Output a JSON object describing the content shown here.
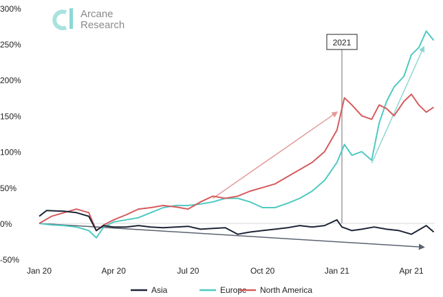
{
  "brand": {
    "line1": "Arcane",
    "line2": "Research",
    "logo_color": "#9edfdc"
  },
  "chart_data": {
    "type": "line",
    "title": "",
    "xlabel": "",
    "ylabel": "",
    "x_unit": "months since Jan 2020",
    "xlim": [
      0,
      15.9
    ],
    "ylim": [
      -50,
      300
    ],
    "x_ticks": [
      {
        "v": 0,
        "label": "Jan 20"
      },
      {
        "v": 3,
        "label": "Apr 20"
      },
      {
        "v": 6,
        "label": "Jul 20"
      },
      {
        "v": 9,
        "label": "Oct 20"
      },
      {
        "v": 12,
        "label": "Jan 21"
      },
      {
        "v": 15,
        "label": "Apr 21"
      }
    ],
    "y_ticks": [
      {
        "v": 300,
        "label": "300%"
      },
      {
        "v": 250,
        "label": "250%"
      },
      {
        "v": 200,
        "label": "200%"
      },
      {
        "v": 150,
        "label": "150%"
      },
      {
        "v": 100,
        "label": "100%"
      },
      {
        "v": 50,
        "label": "50%"
      },
      {
        "v": 0,
        "label": "0%"
      },
      {
        "v": -50,
        "label": "-50%"
      }
    ],
    "legend_position": "bottom",
    "series": [
      {
        "name": "Asia",
        "color": "#1b2434",
        "x": [
          0,
          0.3,
          1,
          1.5,
          2,
          2.3,
          2.6,
          3,
          3.5,
          4,
          4.5,
          5,
          5.5,
          6,
          6.5,
          7,
          7.5,
          8,
          8.5,
          9,
          9.5,
          10,
          10.5,
          11,
          11.5,
          12,
          12.2,
          12.6,
          13,
          13.5,
          14,
          14.5,
          15,
          15.6,
          15.9
        ],
        "y": [
          10,
          18,
          17,
          15,
          10,
          -10,
          -3,
          -5,
          -5,
          -3,
          -5,
          -6,
          -5,
          -4,
          -8,
          -7,
          -6,
          -15,
          -12,
          -10,
          -8,
          -6,
          -3,
          -5,
          -3,
          5,
          -5,
          -10,
          -8,
          -5,
          -8,
          -10,
          -15,
          -3,
          -12
        ]
      },
      {
        "name": "Europe",
        "color": "#4ec9c1",
        "x": [
          0,
          0.5,
          1,
          1.5,
          2,
          2.3,
          2.6,
          3,
          3.5,
          4,
          4.5,
          5,
          5.5,
          6,
          6.5,
          7,
          7.5,
          8,
          8.5,
          9,
          9.5,
          10,
          10.5,
          11,
          11.5,
          12,
          12.3,
          12.6,
          13,
          13.4,
          13.7,
          14,
          14.3,
          14.7,
          15,
          15.3,
          15.6,
          15.9
        ],
        "y": [
          0,
          -2,
          -3,
          -5,
          -10,
          -20,
          -5,
          2,
          5,
          8,
          15,
          22,
          25,
          25,
          27,
          30,
          35,
          35,
          30,
          22,
          22,
          28,
          35,
          45,
          60,
          85,
          110,
          95,
          100,
          88,
          140,
          170,
          190,
          205,
          235,
          245,
          268,
          255
        ]
      },
      {
        "name": "North America",
        "color": "#d65a5c",
        "x": [
          0,
          0.5,
          1,
          1.5,
          2,
          2.3,
          2.6,
          3,
          3.5,
          4,
          4.5,
          5,
          5.5,
          6,
          6.5,
          7,
          7.5,
          8,
          8.5,
          9,
          9.5,
          10,
          10.5,
          11,
          11.5,
          12,
          12.3,
          12.6,
          13,
          13.4,
          13.7,
          14,
          14.3,
          14.7,
          15,
          15.3,
          15.6,
          15.9
        ],
        "y": [
          0,
          10,
          15,
          20,
          15,
          -10,
          -2,
          5,
          12,
          20,
          22,
          25,
          23,
          20,
          30,
          38,
          35,
          38,
          45,
          50,
          55,
          65,
          75,
          85,
          100,
          130,
          175,
          165,
          150,
          145,
          165,
          160,
          150,
          170,
          180,
          165,
          155,
          162
        ]
      }
    ],
    "annotations": [
      {
        "type": "vline",
        "x": 12.2,
        "label": "2021"
      },
      {
        "type": "arrow",
        "from": [
          7,
          35
        ],
        "to": [
          12,
          155
        ],
        "color": "#e39a9a"
      },
      {
        "type": "arrow",
        "from": [
          13.4,
          84
        ],
        "to": [
          15.5,
          246
        ],
        "color": "#8fd8d2"
      },
      {
        "type": "arrow",
        "from": [
          0,
          0
        ],
        "to": [
          15.5,
          -33
        ],
        "color": "#5a6170"
      }
    ]
  }
}
